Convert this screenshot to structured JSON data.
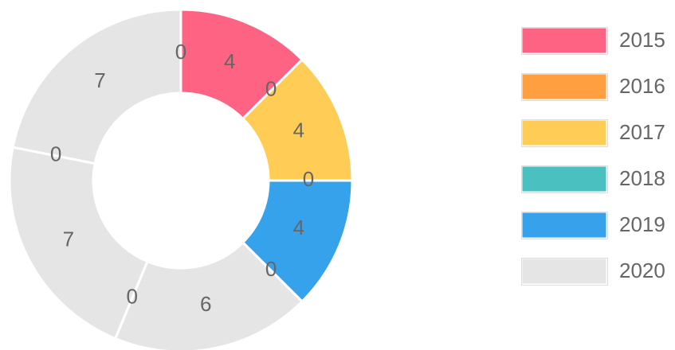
{
  "chart_data": {
    "type": "doughnut",
    "values": [
      4,
      0,
      4,
      0,
      4,
      0,
      6,
      0,
      7,
      0,
      7,
      0
    ],
    "colors": [
      "#ff6384",
      "#ff9f40",
      "#ffcd56",
      "#4bc0c0",
      "#36a2eb",
      "#e5e5e5",
      "#e5e5e5",
      "#e5e5e5",
      "#e5e5e5",
      "#e5e5e5",
      "#e5e5e5",
      "#e5e5e5"
    ],
    "legend": [
      {
        "name": "2015",
        "color": "#ff6384"
      },
      {
        "name": "2016",
        "color": "#ff9f40"
      },
      {
        "name": "2017",
        "color": "#ffcd56"
      },
      {
        "name": "2018",
        "color": "#4bc0c0"
      },
      {
        "name": "2019",
        "color": "#36a2eb"
      },
      {
        "name": "2020",
        "color": "#e5e5e5"
      }
    ]
  }
}
